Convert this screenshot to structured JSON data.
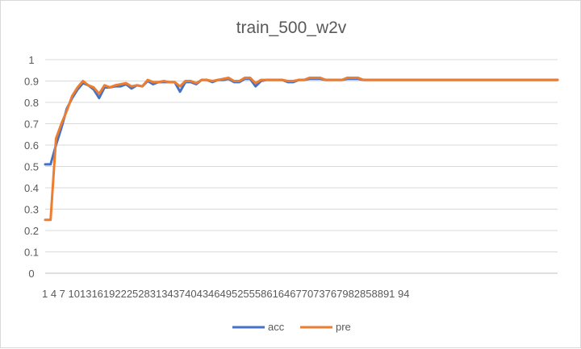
{
  "chart_data": {
    "type": "line",
    "title": "train_500_w2v",
    "xlabel": "",
    "ylabel": "",
    "ylim": [
      0,
      1
    ],
    "yticks": [
      "0",
      "0.1",
      "0.2",
      "0.3",
      "0.4",
      "0.5",
      "0.6",
      "0.7",
      "0.8",
      "0.9",
      "1"
    ],
    "xtick_label": "1 4 7 10131619222528313437404346495255586164677073767982858891 94",
    "grid": true,
    "legend": "bottom",
    "x": [
      1,
      2,
      3,
      4,
      5,
      6,
      7,
      8,
      9,
      10,
      11,
      12,
      13,
      14,
      15,
      16,
      17,
      18,
      19,
      20,
      21,
      22,
      23,
      24,
      25,
      26,
      27,
      28,
      29,
      30,
      31,
      32,
      33,
      34,
      35,
      36,
      37,
      38,
      39,
      40,
      41,
      42,
      43,
      44,
      45,
      46,
      47,
      48,
      49,
      50,
      51,
      52,
      53,
      54,
      55,
      56,
      57,
      58,
      59,
      60,
      61,
      62,
      63,
      64,
      65,
      66,
      67,
      68,
      69,
      70,
      71,
      72,
      73,
      74,
      75,
      76,
      77,
      78,
      79,
      80,
      81,
      82,
      83,
      84,
      85,
      86,
      87,
      88,
      89,
      90,
      91,
      92,
      93,
      94,
      95,
      96
    ],
    "series": [
      {
        "name": "acc",
        "color": "#4472c4",
        "values": [
          0.51,
          0.51,
          0.6,
          0.68,
          0.77,
          0.82,
          0.86,
          0.89,
          0.88,
          0.86,
          0.82,
          0.87,
          0.87,
          0.875,
          0.875,
          0.885,
          0.865,
          0.88,
          0.875,
          0.9,
          0.885,
          0.895,
          0.895,
          0.895,
          0.895,
          0.85,
          0.895,
          0.895,
          0.885,
          0.905,
          0.905,
          0.895,
          0.905,
          0.905,
          0.91,
          0.895,
          0.895,
          0.91,
          0.91,
          0.875,
          0.9,
          0.905,
          0.905,
          0.905,
          0.905,
          0.895,
          0.895,
          0.905,
          0.905,
          0.91,
          0.91,
          0.91,
          0.905,
          0.905,
          0.905,
          0.905,
          0.91,
          0.91,
          0.91,
          0.905,
          0.905,
          0.905,
          0.905,
          0.905,
          0.905,
          0.905,
          0.905,
          0.905,
          0.905,
          0.905,
          0.905,
          0.905,
          0.905,
          0.905,
          0.905,
          0.905,
          0.905,
          0.905,
          0.905,
          0.905,
          0.905,
          0.905,
          0.905,
          0.905,
          0.905,
          0.905,
          0.905,
          0.905,
          0.905,
          0.905,
          0.905,
          0.905,
          0.905,
          0.905,
          0.905,
          0.905
        ]
      },
      {
        "name": "pre",
        "color": "#ed7d31",
        "values": [
          0.25,
          0.25,
          0.63,
          0.7,
          0.76,
          0.83,
          0.87,
          0.9,
          0.88,
          0.87,
          0.84,
          0.88,
          0.87,
          0.88,
          0.885,
          0.89,
          0.875,
          0.88,
          0.875,
          0.905,
          0.895,
          0.895,
          0.9,
          0.895,
          0.895,
          0.875,
          0.9,
          0.9,
          0.89,
          0.905,
          0.905,
          0.9,
          0.905,
          0.91,
          0.915,
          0.9,
          0.9,
          0.915,
          0.915,
          0.89,
          0.905,
          0.905,
          0.905,
          0.905,
          0.905,
          0.9,
          0.9,
          0.905,
          0.905,
          0.915,
          0.915,
          0.915,
          0.905,
          0.905,
          0.905,
          0.905,
          0.915,
          0.915,
          0.915,
          0.905,
          0.905,
          0.905,
          0.905,
          0.905,
          0.905,
          0.905,
          0.905,
          0.905,
          0.905,
          0.905,
          0.905,
          0.905,
          0.905,
          0.905,
          0.905,
          0.905,
          0.905,
          0.905,
          0.905,
          0.905,
          0.905,
          0.905,
          0.905,
          0.905,
          0.905,
          0.905,
          0.905,
          0.905,
          0.905,
          0.905,
          0.905,
          0.905,
          0.905,
          0.905,
          0.905,
          0.905
        ]
      }
    ]
  }
}
